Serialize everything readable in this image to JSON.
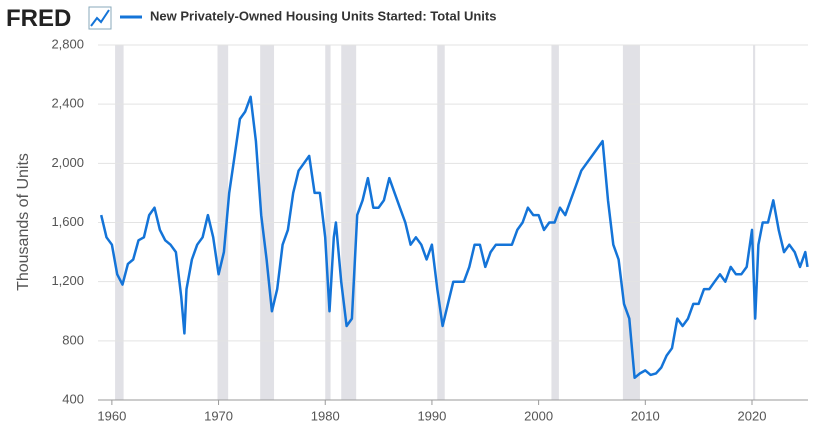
{
  "header": {
    "logo": "FRED"
  },
  "chart_data": {
    "type": "line",
    "ylabel": "Thousands of Units",
    "xlim": [
      1958.7,
      2025.25
    ],
    "xticks": [
      1960,
      1970,
      1980,
      1990,
      2000,
      2010,
      2020
    ],
    "ylim": [
      400,
      2800
    ],
    "yticks": [
      {
        "value": 400,
        "label": "400"
      },
      {
        "value": 800,
        "label": "800"
      },
      {
        "value": 1200,
        "label": "1,200"
      },
      {
        "value": 1600,
        "label": "1,600"
      },
      {
        "value": 2000,
        "label": "2,000"
      },
      {
        "value": 2400,
        "label": "2,400"
      },
      {
        "value": 2800,
        "label": "2,800"
      }
    ],
    "grid": true,
    "recessions": [
      [
        1960.3,
        1961.1
      ],
      [
        1969.9,
        1970.9
      ],
      [
        1973.9,
        1975.2
      ],
      [
        1980.0,
        1980.5
      ],
      [
        1981.5,
        1982.9
      ],
      [
        1990.5,
        1991.2
      ],
      [
        2001.2,
        2001.9
      ],
      [
        2007.9,
        2009.5
      ],
      [
        2020.1,
        2020.3
      ]
    ],
    "x": [
      1959.0,
      1959.5,
      1960.0,
      1960.5,
      1961.0,
      1961.5,
      1962.0,
      1962.5,
      1963.0,
      1963.5,
      1964.0,
      1964.5,
      1965.0,
      1965.5,
      1966.0,
      1966.5,
      1966.8,
      1967.0,
      1967.5,
      1968.0,
      1968.5,
      1969.0,
      1969.5,
      1970.0,
      1970.5,
      1971.0,
      1971.5,
      1972.0,
      1972.5,
      1973.0,
      1973.5,
      1974.0,
      1974.5,
      1975.0,
      1975.5,
      1976.0,
      1976.5,
      1977.0,
      1977.5,
      1978.0,
      1978.5,
      1979.0,
      1979.5,
      1980.0,
      1980.4,
      1980.8,
      1981.0,
      1981.5,
      1982.0,
      1982.5,
      1983.0,
      1983.5,
      1984.0,
      1984.5,
      1985.0,
      1985.5,
      1986.0,
      1986.5,
      1987.0,
      1987.5,
      1988.0,
      1988.5,
      1989.0,
      1989.5,
      1990.0,
      1990.5,
      1991.0,
      1991.5,
      1992.0,
      1992.5,
      1993.0,
      1993.5,
      1994.0,
      1994.5,
      1995.0,
      1995.5,
      1996.0,
      1996.5,
      1997.0,
      1997.5,
      1998.0,
      1998.5,
      1999.0,
      1999.5,
      2000.0,
      2000.5,
      2001.0,
      2001.5,
      2002.0,
      2002.5,
      2003.0,
      2003.5,
      2004.0,
      2004.5,
      2005.0,
      2005.5,
      2006.0,
      2006.5,
      2007.0,
      2007.5,
      2008.0,
      2008.5,
      2009.0,
      2009.5,
      2010.0,
      2010.5,
      2011.0,
      2011.5,
      2012.0,
      2012.5,
      2013.0,
      2013.5,
      2014.0,
      2014.5,
      2015.0,
      2015.5,
      2016.0,
      2016.5,
      2017.0,
      2017.5,
      2018.0,
      2018.5,
      2019.0,
      2019.5,
      2020.0,
      2020.3,
      2020.6,
      2021.0,
      2021.5,
      2022.0,
      2022.5,
      2023.0,
      2023.5,
      2024.0,
      2024.5,
      2025.0,
      2025.2
    ],
    "series": [
      {
        "name": "New Privately-Owned Housing Units Started: Total Units",
        "color": "#1474d8",
        "values": [
          1650,
          1500,
          1450,
          1250,
          1180,
          1320,
          1350,
          1480,
          1500,
          1650,
          1700,
          1550,
          1480,
          1450,
          1400,
          1100,
          850,
          1150,
          1350,
          1450,
          1500,
          1650,
          1500,
          1250,
          1400,
          1800,
          2050,
          2300,
          2350,
          2450,
          2150,
          1650,
          1350,
          1000,
          1150,
          1450,
          1550,
          1800,
          1950,
          2000,
          2050,
          1800,
          1800,
          1500,
          1000,
          1500,
          1600,
          1200,
          900,
          950,
          1650,
          1750,
          1900,
          1700,
          1700,
          1750,
          1900,
          1800,
          1700,
          1600,
          1450,
          1500,
          1450,
          1350,
          1450,
          1150,
          900,
          1050,
          1200,
          1200,
          1200,
          1300,
          1450,
          1450,
          1300,
          1400,
          1450,
          1450,
          1450,
          1450,
          1550,
          1600,
          1700,
          1650,
          1650,
          1550,
          1600,
          1600,
          1700,
          1650,
          1750,
          1850,
          1950,
          2000,
          2050,
          2100,
          2150,
          1750,
          1450,
          1350,
          1050,
          950,
          550,
          580,
          600,
          570,
          580,
          620,
          700,
          750,
          950,
          900,
          950,
          1050,
          1050,
          1150,
          1150,
          1200,
          1250,
          1200,
          1300,
          1250,
          1250,
          1300,
          1550,
          950,
          1450,
          1600,
          1600,
          1750,
          1550,
          1400,
          1450,
          1400,
          1300,
          1400,
          1300
        ]
      }
    ]
  }
}
